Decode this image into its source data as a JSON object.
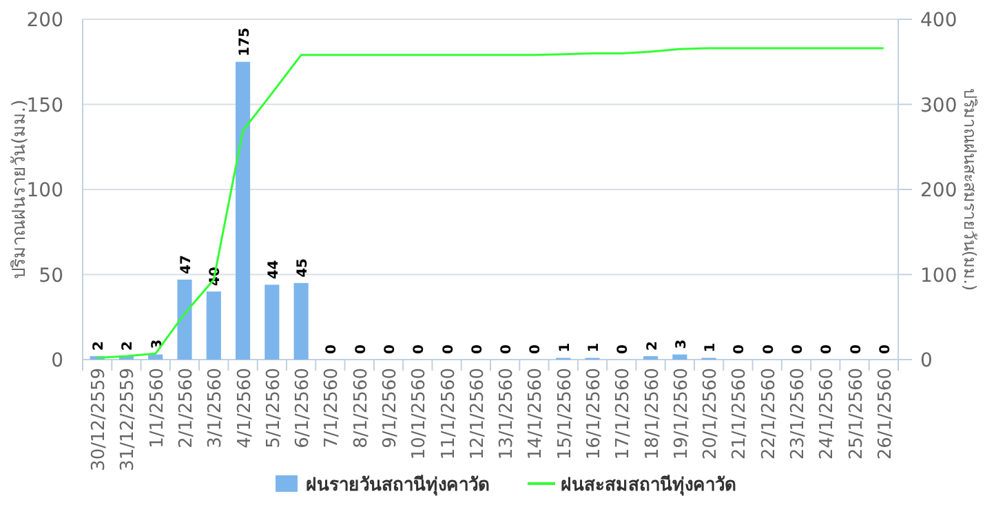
{
  "chart_data": {
    "type": "bar",
    "ylabel": "ปริมาณฝนรายวัน(มม.)",
    "y2label": "ปริมาณฝนสะสมรายวัน(มม.)",
    "categories": [
      "30/12/2559",
      "31/12/2559",
      "1/1/2560",
      "2/1/2560",
      "3/1/2560",
      "4/1/2560",
      "5/1/2560",
      "6/1/2560",
      "7/1/2560",
      "8/1/2560",
      "9/1/2560",
      "10/1/2560",
      "11/1/2560",
      "12/1/2560",
      "13/1/2560",
      "14/1/2560",
      "15/1/2560",
      "16/1/2560",
      "17/1/2560",
      "18/1/2560",
      "19/1/2560",
      "20/1/2560",
      "21/1/2560",
      "22/1/2560",
      "23/1/2560",
      "24/1/2560",
      "25/1/2560",
      "26/1/2560"
    ],
    "series": [
      {
        "name": "ฝนรายวันสถานีทุ่งคาวัด",
        "color": "#7cb5ec",
        "data_labels": true,
        "values": [
          2,
          2,
          3,
          47,
          40,
          175,
          44,
          45,
          0,
          0,
          0,
          0,
          0,
          0,
          0,
          0,
          1,
          1,
          0,
          2,
          3,
          1,
          0,
          0,
          0,
          0,
          0,
          0
        ]
      },
      {
        "name": "ฝนสะสมสถานีทุ่งคาวัด",
        "type": "line",
        "axis": "y2",
        "color": "#33ff33",
        "marker": "none",
        "values": [
          2,
          4,
          7,
          54,
          94,
          269,
          313,
          358,
          358,
          358,
          358,
          358,
          358,
          358,
          358,
          358,
          359,
          360,
          360,
          362,
          365,
          366,
          366,
          366,
          366,
          366,
          366,
          366
        ]
      }
    ],
    "ylim": [
      0,
      200
    ],
    "yticks": [
      0,
      50,
      100,
      150,
      200
    ],
    "y2lim": [
      0,
      400
    ],
    "y2ticks": [
      0,
      100,
      200,
      300,
      400
    ],
    "grid": "y",
    "legend": "bottom"
  }
}
